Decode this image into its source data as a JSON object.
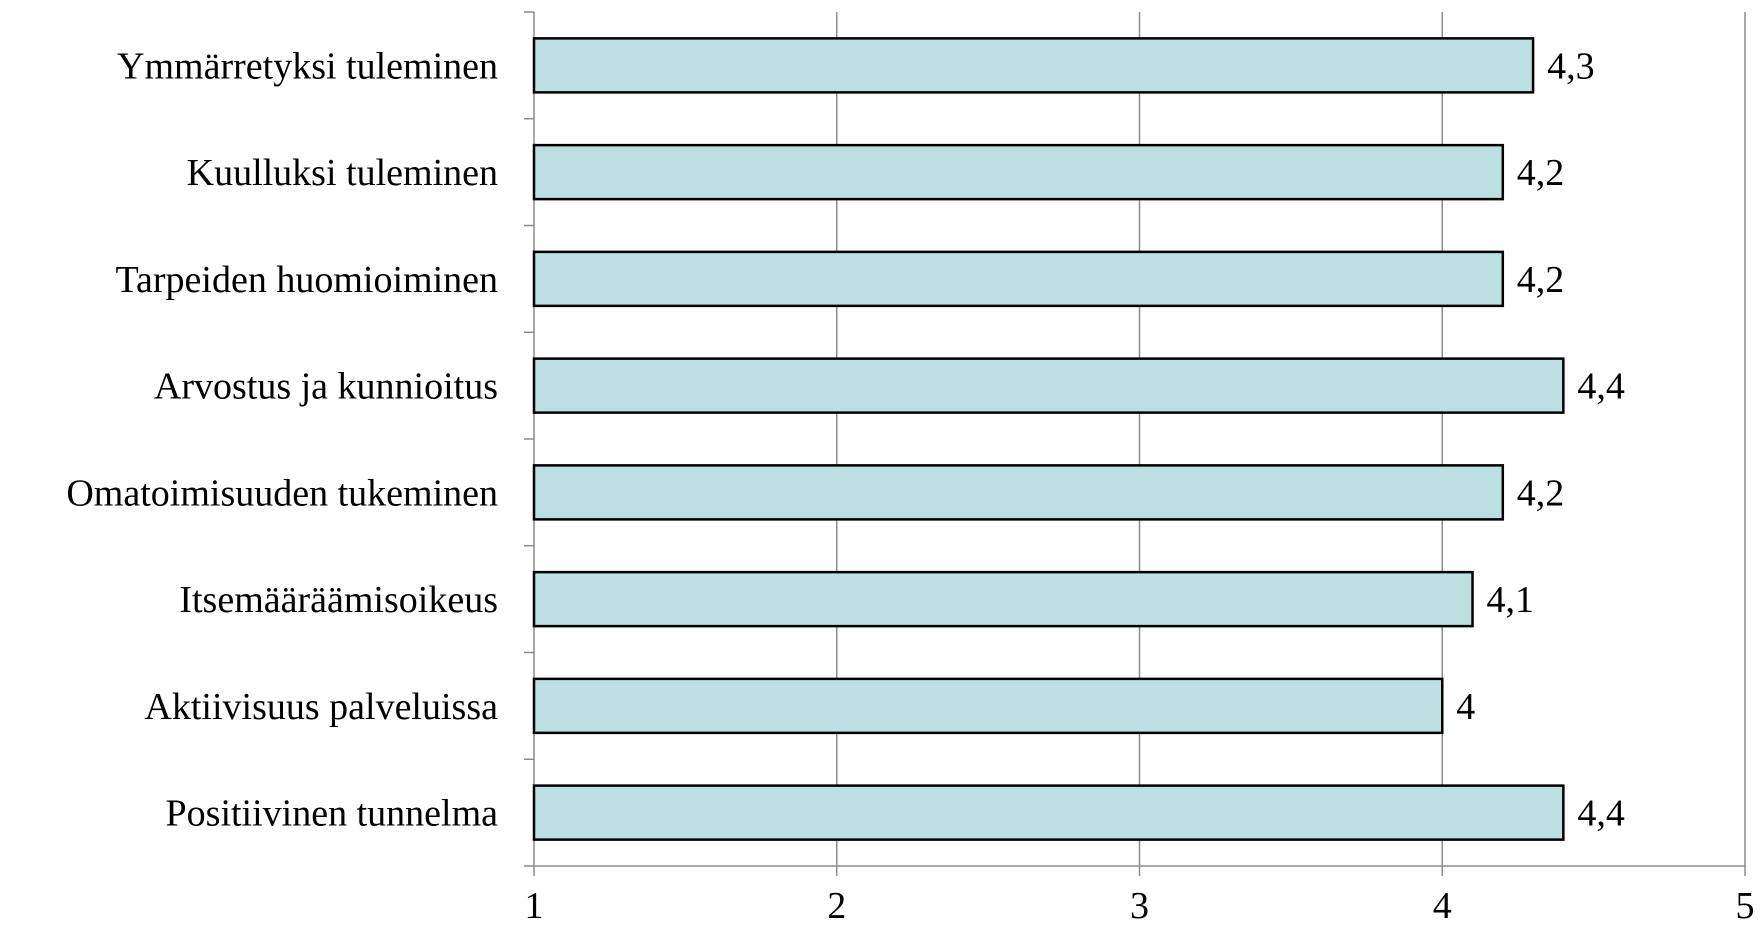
{
  "chart_data": {
    "type": "bar",
    "orientation": "horizontal",
    "categories": [
      "Ymmärretyksi tuleminen",
      "Kuulluksi tuleminen",
      "Tarpeiden huomioiminen",
      "Arvostus ja kunnioitus",
      "Omatoimisuuden tukeminen",
      "Itsemääräämisoikeus",
      "Aktiivisuus palveluissa",
      "Positiivinen tunnelma"
    ],
    "values": [
      4.3,
      4.2,
      4.2,
      4.4,
      4.2,
      4.1,
      4.0,
      4.4
    ],
    "value_labels": [
      "4,3",
      "4,2",
      "4,2",
      "4,4",
      "4,2",
      "4,1",
      "4",
      "4,4"
    ],
    "xlim": [
      1,
      5
    ],
    "x_ticks": [
      1,
      2,
      3,
      4,
      5
    ],
    "x_tick_labels": [
      "1",
      "2",
      "3",
      "4",
      "5"
    ],
    "grid": true,
    "legend": "none",
    "title": "",
    "xlabel": "",
    "ylabel": "",
    "colors": {
      "bar_fill": "#bcdfe2",
      "bar_stroke": "#000000",
      "grid": "#8c8c8c",
      "axis": "#8c8c8c"
    }
  }
}
